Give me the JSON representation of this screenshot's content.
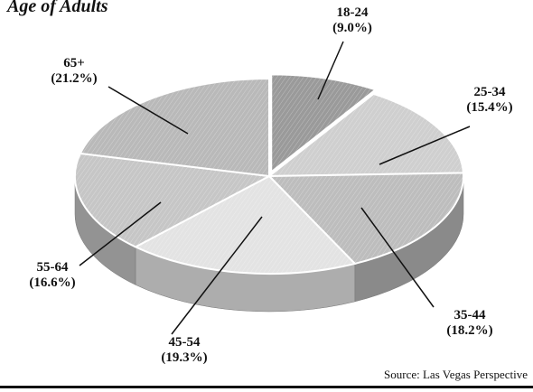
{
  "chart_data": {
    "type": "pie",
    "title": "Age of Adults",
    "source": "Source: Las Vegas Perspective",
    "slices": [
      {
        "label": "18-24",
        "pct_label": "(9.0%)",
        "value": 9.0
      },
      {
        "label": "25-34",
        "pct_label": "(15.4%)",
        "value": 15.4
      },
      {
        "label": "35-44",
        "pct_label": "(18.2%)",
        "value": 18.2
      },
      {
        "label": "45-54",
        "pct_label": "(19.3%)",
        "value": 19.3
      },
      {
        "label": "55-64",
        "pct_label": "(16.6%)",
        "value": 16.6
      },
      {
        "label": "65+",
        "pct_label": "(21.2%)",
        "value": 21.2
      }
    ],
    "three_d": true,
    "exploded_slice": "18-24",
    "colors": {
      "top": [
        "#9a9a9a",
        "#cfcfcf",
        "#bdbdbd",
        "#e3e3e3",
        "#c6c6c6",
        "#b9b9b9"
      ],
      "side": [
        "#6f6f6f",
        "#9d9d9d",
        "#8a8a8a",
        "#adadad",
        "#939393",
        "#8d8d8d"
      ]
    }
  }
}
